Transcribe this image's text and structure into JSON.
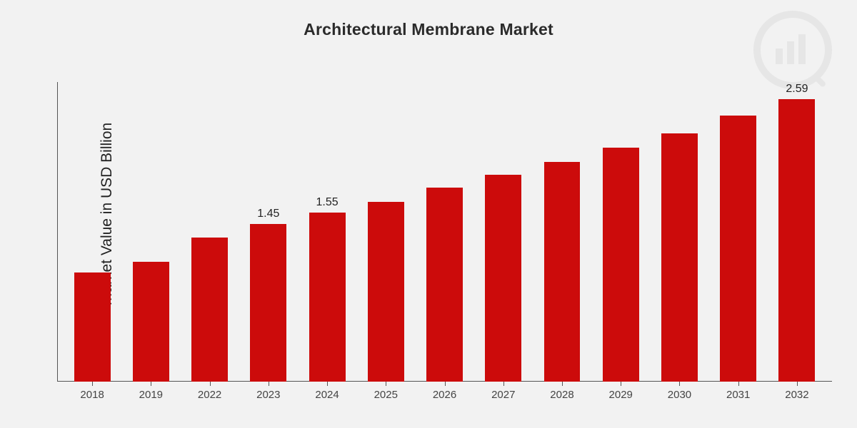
{
  "chart": {
    "type": "bar",
    "title": "Architectural Membrane Market",
    "title_fontsize": 23,
    "ylabel": "Market Value in USD Billion",
    "ylabel_fontsize": 21,
    "background_color": "#f2f2f2",
    "bar_color": "#cc0b0b",
    "axis_color": "#555555",
    "text_color": "#222222",
    "bar_width_ratio": 0.62,
    "ymax": 2.75,
    "ymin": 0,
    "categories": [
      "2018",
      "2019",
      "2022",
      "2023",
      "2024",
      "2025",
      "2026",
      "2027",
      "2028",
      "2029",
      "2030",
      "2031",
      "2032"
    ],
    "values": [
      1.0,
      1.1,
      1.32,
      1.45,
      1.55,
      1.65,
      1.78,
      1.9,
      2.02,
      2.15,
      2.28,
      2.44,
      2.59
    ],
    "value_labels": [
      "",
      "",
      "",
      "1.45",
      "1.55",
      "",
      "",
      "",
      "",
      "",
      "",
      "",
      "2.59"
    ],
    "show_all_value_labels": false,
    "watermark_opacity": 0.1,
    "font_family": "Arial"
  }
}
